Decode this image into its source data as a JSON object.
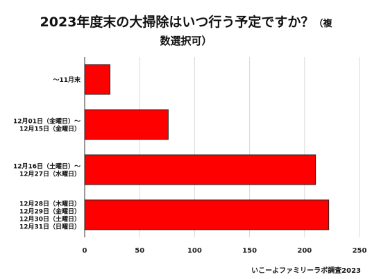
{
  "title_line1": "2023年度末の大掃除はいつ行う予定ですか？",
  "title_paren_open": "（複",
  "title_line2": "数選択可）",
  "source": "いこーよファミリーラボ調査2023",
  "colors": {
    "bar": "#ff0000",
    "bar_stroke": "#222222",
    "grid": "#d9d9d9",
    "axis": "#333333"
  },
  "chart_data": {
    "type": "bar",
    "orientation": "horizontal",
    "categories": [
      [
        "～11月末"
      ],
      [
        "12月01日（金曜日）～",
        "12月15日（金曜日）"
      ],
      [
        "12月16日（土曜日）～",
        "12月27日（水曜日）"
      ],
      [
        "12月28日（木曜日）",
        "12月29日（金曜日）",
        "12月30日（土曜日）",
        "12月31日（日曜日）"
      ]
    ],
    "values": [
      23,
      76,
      210,
      222
    ],
    "xlim": [
      0,
      250
    ],
    "xticks": [
      "0",
      "50",
      "100",
      "150",
      "200",
      "250"
    ],
    "grid": true,
    "legend": "none"
  }
}
